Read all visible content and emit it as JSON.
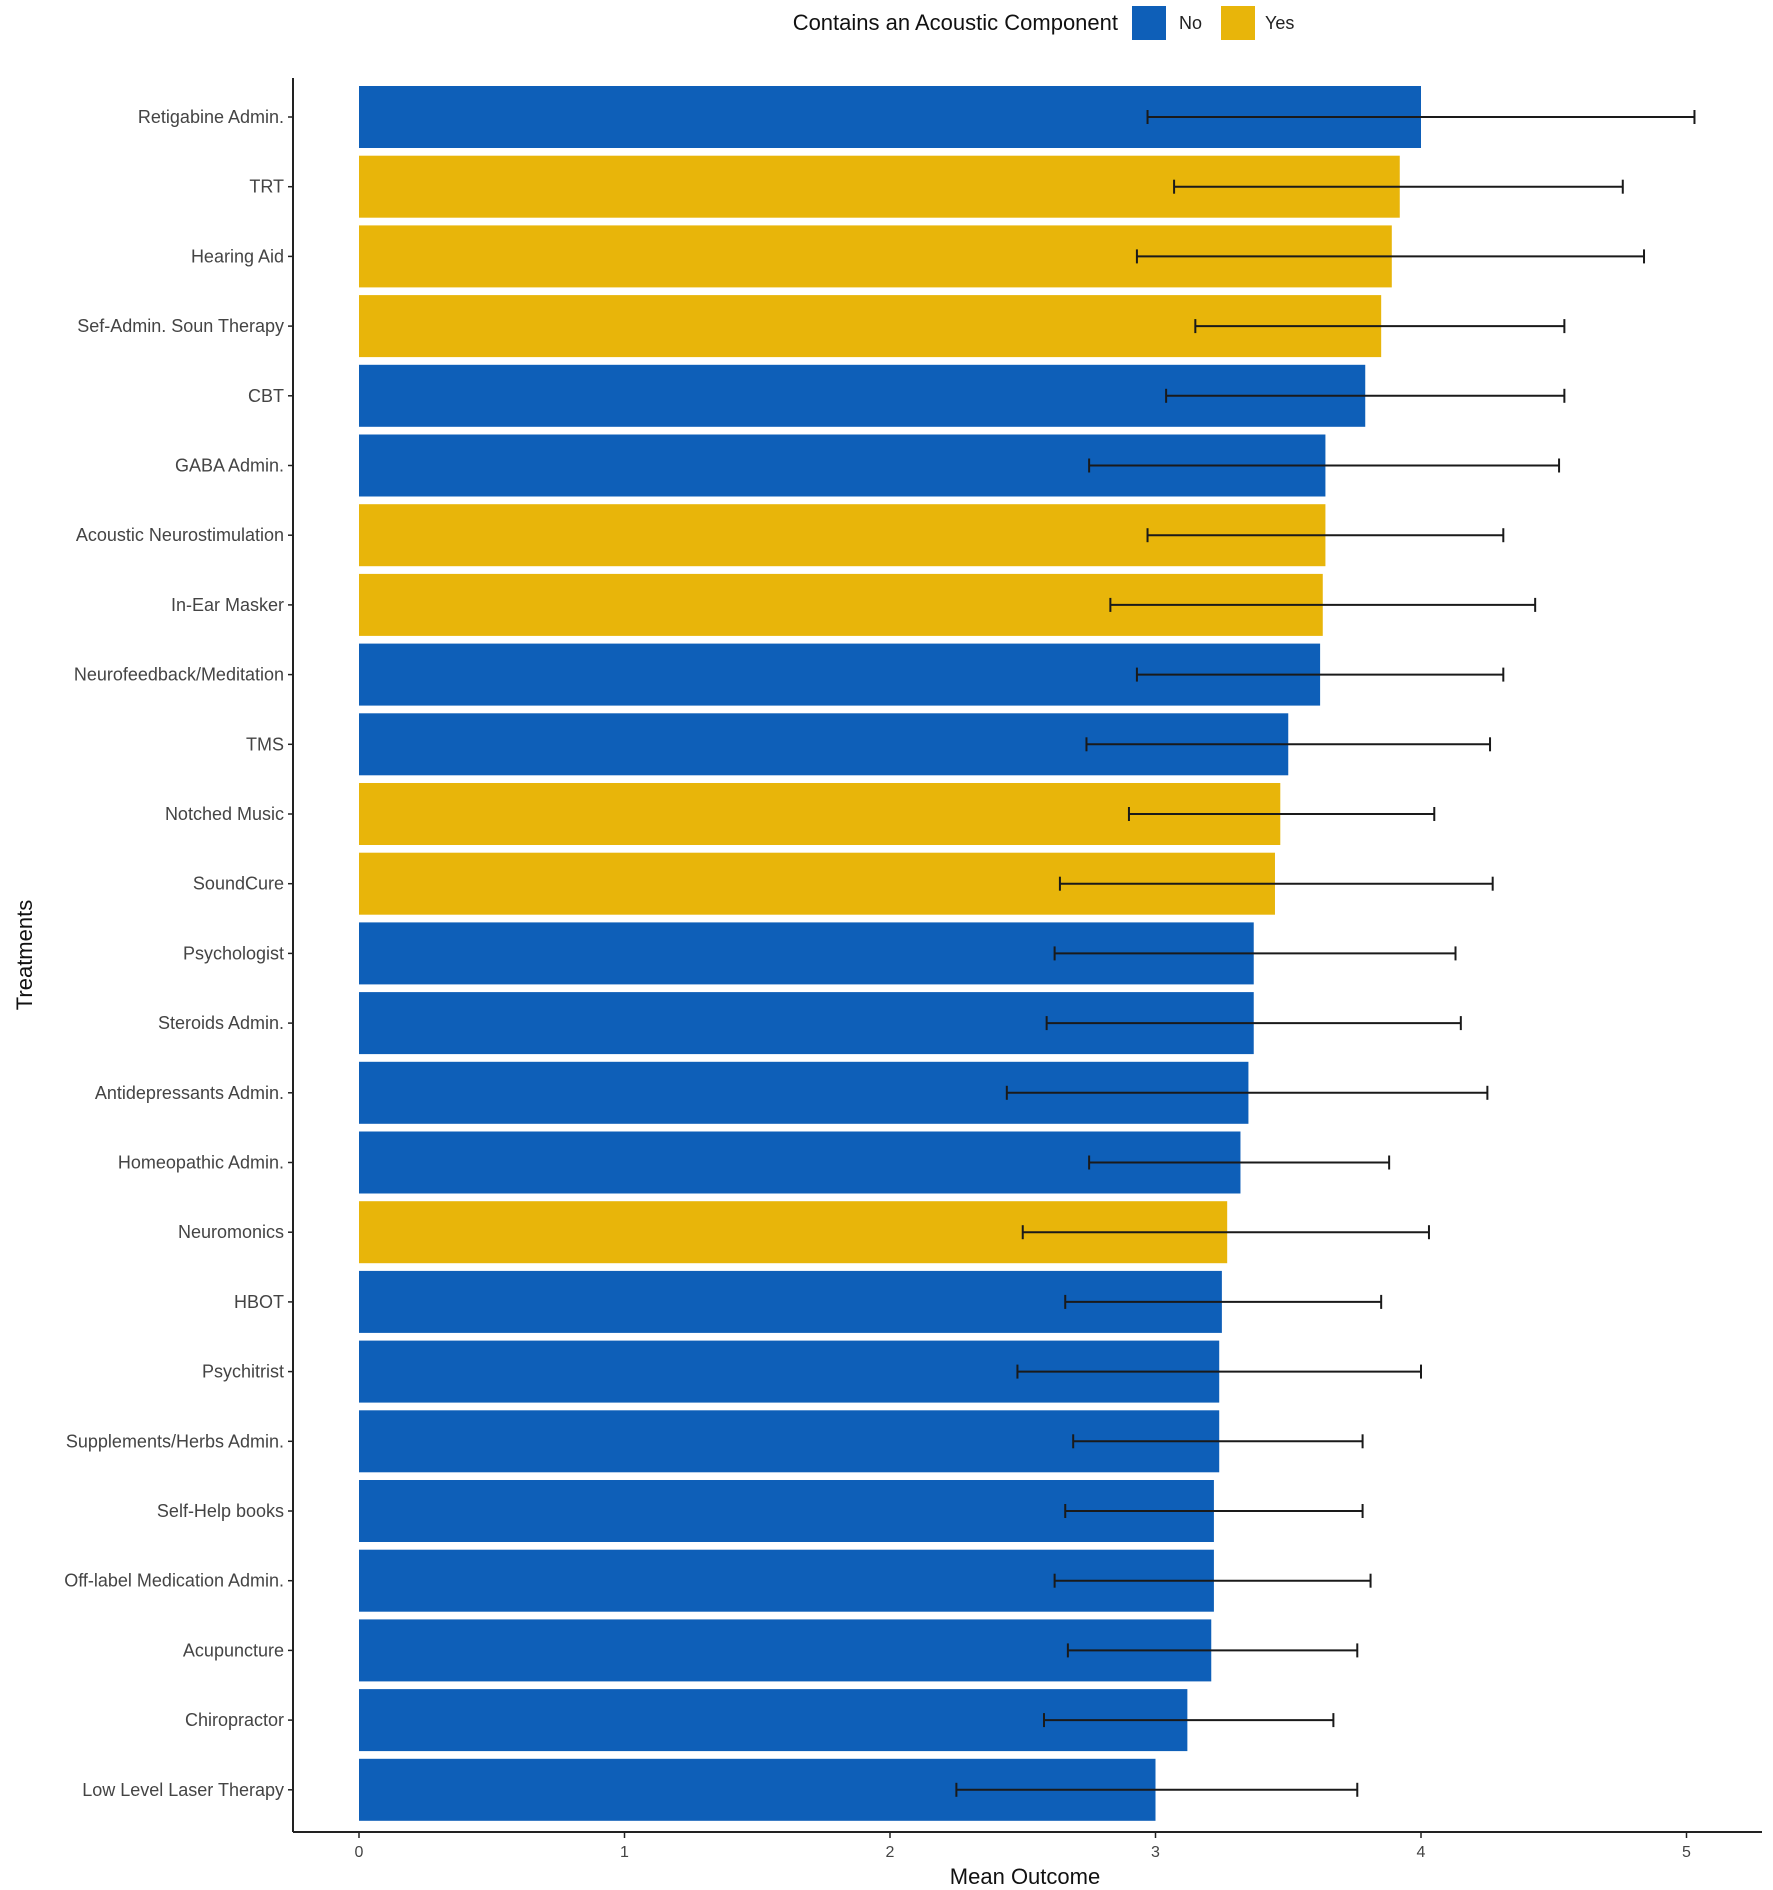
{
  "chart_data": {
    "type": "bar",
    "orientation": "horizontal",
    "xlabel": "Mean Outcome",
    "ylabel": "Treatments",
    "xlim": [
      0,
      5.5
    ],
    "x_ticks": [
      0,
      1,
      2,
      3,
      4,
      5
    ],
    "grid": false,
    "legend": {
      "title": "Contains an Acoustic Component",
      "position": "top",
      "entries": [
        {
          "key": "No",
          "label": "No",
          "color": "#0E5FB8"
        },
        {
          "key": "Yes",
          "label": "Yes",
          "color": "#E8B50A"
        }
      ]
    },
    "colors": {
      "No": "#0E5FB8",
      "Yes": "#E8B50A",
      "error_bar": "#1a1a1a",
      "axis": "#222222"
    },
    "bars": [
      {
        "label": "Retigabine Admin.",
        "value": 4.0,
        "err_low": 2.97,
        "err_high": 5.03,
        "group": "No"
      },
      {
        "label": "TRT",
        "value": 3.92,
        "err_low": 3.07,
        "err_high": 4.76,
        "group": "Yes"
      },
      {
        "label": "Hearing Aid",
        "value": 3.89,
        "err_low": 2.93,
        "err_high": 4.84,
        "group": "Yes"
      },
      {
        "label": "Sef-Admin. Soun Therapy",
        "value": 3.85,
        "err_low": 3.15,
        "err_high": 4.54,
        "group": "Yes"
      },
      {
        "label": "CBT",
        "value": 3.79,
        "err_low": 3.04,
        "err_high": 4.54,
        "group": "No"
      },
      {
        "label": "GABA Admin.",
        "value": 3.64,
        "err_low": 2.75,
        "err_high": 4.52,
        "group": "No"
      },
      {
        "label": "Acoustic Neurostimulation",
        "value": 3.64,
        "err_low": 2.97,
        "err_high": 4.31,
        "group": "Yes"
      },
      {
        "label": "In-Ear Masker",
        "value": 3.63,
        "err_low": 2.83,
        "err_high": 4.43,
        "group": "Yes"
      },
      {
        "label": "Neurofeedback/Meditation",
        "value": 3.62,
        "err_low": 2.93,
        "err_high": 4.31,
        "group": "No"
      },
      {
        "label": "TMS",
        "value": 3.5,
        "err_low": 2.74,
        "err_high": 4.26,
        "group": "No"
      },
      {
        "label": "Notched Music",
        "value": 3.47,
        "err_low": 2.9,
        "err_high": 4.05,
        "group": "Yes"
      },
      {
        "label": "SoundCure",
        "value": 3.45,
        "err_low": 2.64,
        "err_high": 4.27,
        "group": "Yes"
      },
      {
        "label": "Psychologist",
        "value": 3.37,
        "err_low": 2.62,
        "err_high": 4.13,
        "group": "No"
      },
      {
        "label": "Steroids Admin.",
        "value": 3.37,
        "err_low": 2.59,
        "err_high": 4.15,
        "group": "No"
      },
      {
        "label": "Antidepressants Admin.",
        "value": 3.35,
        "err_low": 2.44,
        "err_high": 4.25,
        "group": "No"
      },
      {
        "label": "Homeopathic Admin.",
        "value": 3.32,
        "err_low": 2.75,
        "err_high": 3.88,
        "group": "No"
      },
      {
        "label": "Neuromonics",
        "value": 3.27,
        "err_low": 2.5,
        "err_high": 4.03,
        "group": "Yes"
      },
      {
        "label": "HBOT",
        "value": 3.25,
        "err_low": 2.66,
        "err_high": 3.85,
        "group": "No"
      },
      {
        "label": "Psychitrist",
        "value": 3.24,
        "err_low": 2.48,
        "err_high": 4.0,
        "group": "No"
      },
      {
        "label": "Supplements/Herbs Admin.",
        "value": 3.24,
        "err_low": 2.69,
        "err_high": 3.78,
        "group": "No"
      },
      {
        "label": "Self-Help books",
        "value": 3.22,
        "err_low": 2.66,
        "err_high": 3.78,
        "group": "No"
      },
      {
        "label": "Off-label Medication Admin.",
        "value": 3.22,
        "err_low": 2.62,
        "err_high": 3.81,
        "group": "No"
      },
      {
        "label": "Acupuncture",
        "value": 3.21,
        "err_low": 2.67,
        "err_high": 3.76,
        "group": "No"
      },
      {
        "label": "Chiropractor",
        "value": 3.12,
        "err_low": 2.58,
        "err_high": 3.67,
        "group": "No"
      },
      {
        "label": "Low Level Laser Therapy",
        "value": 3.0,
        "err_low": 2.25,
        "err_high": 3.76,
        "group": "No"
      }
    ]
  }
}
